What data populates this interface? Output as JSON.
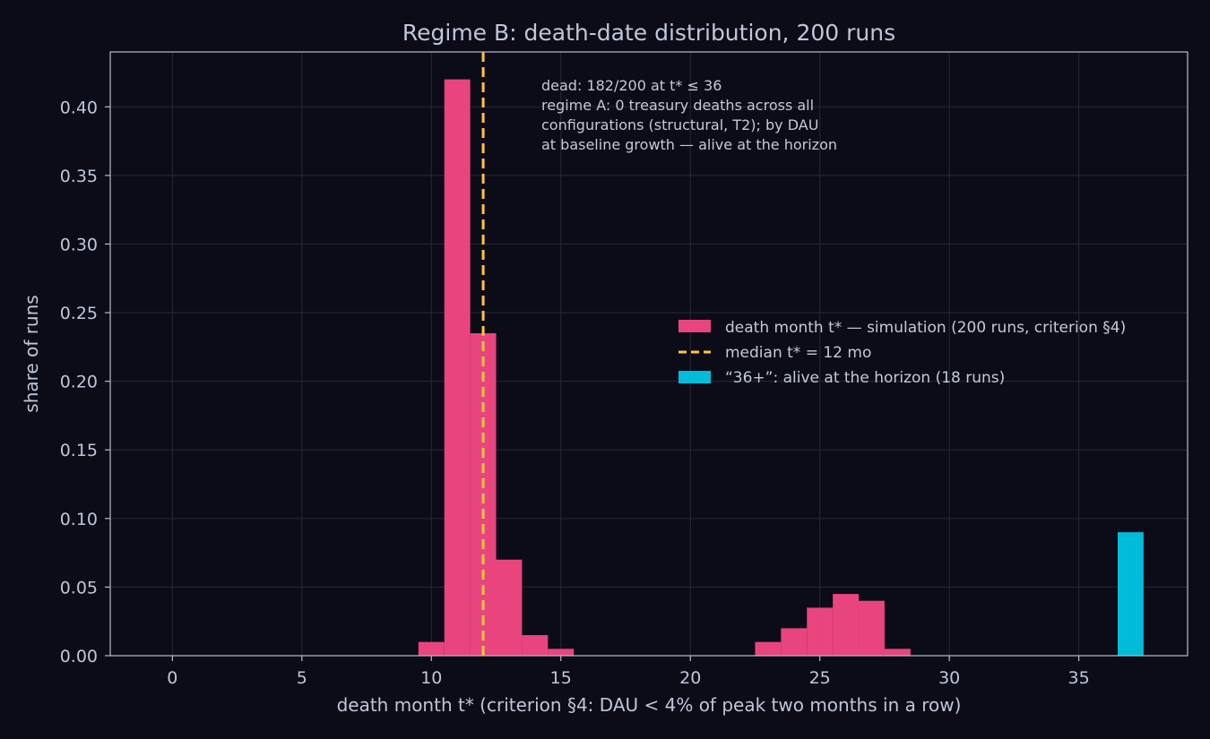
{
  "chart_data": {
    "type": "bar",
    "title": "Regime B: death-date distribution, 200 runs",
    "xlabel": "death month t* (criterion §4: DAU < 4% of peak two months in a row)",
    "ylabel": "share of runs",
    "xlim": [
      -2.4,
      39.2
    ],
    "ylim": [
      0,
      0.44
    ],
    "xticks": [
      0,
      5,
      10,
      15,
      20,
      25,
      30,
      35
    ],
    "yticks": [
      0.0,
      0.05,
      0.1,
      0.15,
      0.2,
      0.25,
      0.3,
      0.35,
      0.4
    ],
    "grid": true,
    "legend_position": "center-right",
    "series": [
      {
        "name": "death month t* — simulation (200 runs, criterion §4)",
        "color": "#e8457f",
        "bins": [
          {
            "x0": 9.5,
            "x1": 10.5,
            "value": 0.01
          },
          {
            "x0": 10.5,
            "x1": 11.5,
            "value": 0.42
          },
          {
            "x0": 11.5,
            "x1": 12.5,
            "value": 0.235
          },
          {
            "x0": 12.5,
            "x1": 13.5,
            "value": 0.07
          },
          {
            "x0": 13.5,
            "x1": 14.5,
            "value": 0.015
          },
          {
            "x0": 14.5,
            "x1": 15.5,
            "value": 0.005
          },
          {
            "x0": 22.5,
            "x1": 23.5,
            "value": 0.01
          },
          {
            "x0": 23.5,
            "x1": 24.5,
            "value": 0.02
          },
          {
            "x0": 24.5,
            "x1": 25.5,
            "value": 0.035
          },
          {
            "x0": 25.5,
            "x1": 26.5,
            "value": 0.045
          },
          {
            "x0": 26.5,
            "x1": 27.5,
            "value": 0.04
          },
          {
            "x0": 27.5,
            "x1": 28.5,
            "value": 0.005
          }
        ]
      },
      {
        "name": "“36+”: alive at the horizon (18 runs)",
        "color": "#00bcd8",
        "bins": [
          {
            "x0": 36.5,
            "x1": 37.5,
            "value": 0.09
          }
        ]
      }
    ],
    "median_line": {
      "x": 12,
      "color": "#ffc53d",
      "name": "median t* = 12 mo"
    },
    "annotation": [
      "dead: 182/200 at t* ≤ 36",
      "regime A: 0 treasury deaths across all",
      "configurations (structural, T2); by DAU",
      "at baseline growth — alive at the horizon"
    ]
  }
}
